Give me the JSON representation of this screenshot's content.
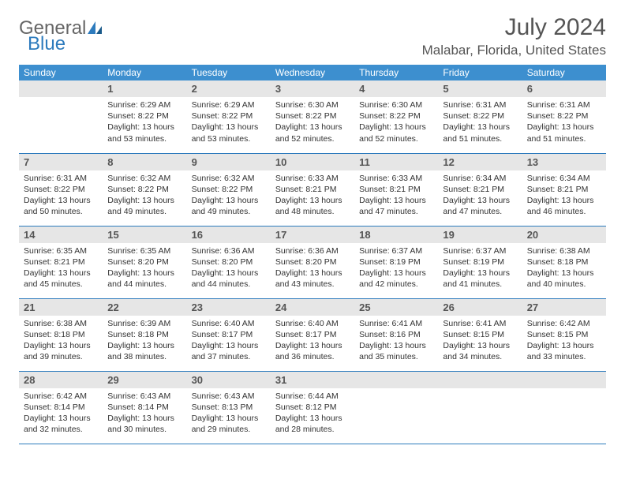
{
  "logo": {
    "word1": "General",
    "word2": "Blue"
  },
  "title": {
    "month": "July 2024",
    "location": "Malabar, Florida, United States"
  },
  "colors": {
    "header_bg": "#3d8fcf",
    "header_text": "#ffffff",
    "daynum_bg": "#e6e6e6",
    "row_border": "#2d7bbd",
    "logo_gray": "#666666",
    "logo_blue": "#2d7bbd"
  },
  "weekdays": [
    "Sunday",
    "Monday",
    "Tuesday",
    "Wednesday",
    "Thursday",
    "Friday",
    "Saturday"
  ],
  "start_offset": 1,
  "days": [
    {
      "n": 1,
      "sr": "6:29 AM",
      "ss": "8:22 PM",
      "dl": "13 hours and 53 minutes."
    },
    {
      "n": 2,
      "sr": "6:29 AM",
      "ss": "8:22 PM",
      "dl": "13 hours and 53 minutes."
    },
    {
      "n": 3,
      "sr": "6:30 AM",
      "ss": "8:22 PM",
      "dl": "13 hours and 52 minutes."
    },
    {
      "n": 4,
      "sr": "6:30 AM",
      "ss": "8:22 PM",
      "dl": "13 hours and 52 minutes."
    },
    {
      "n": 5,
      "sr": "6:31 AM",
      "ss": "8:22 PM",
      "dl": "13 hours and 51 minutes."
    },
    {
      "n": 6,
      "sr": "6:31 AM",
      "ss": "8:22 PM",
      "dl": "13 hours and 51 minutes."
    },
    {
      "n": 7,
      "sr": "6:31 AM",
      "ss": "8:22 PM",
      "dl": "13 hours and 50 minutes."
    },
    {
      "n": 8,
      "sr": "6:32 AM",
      "ss": "8:22 PM",
      "dl": "13 hours and 49 minutes."
    },
    {
      "n": 9,
      "sr": "6:32 AM",
      "ss": "8:22 PM",
      "dl": "13 hours and 49 minutes."
    },
    {
      "n": 10,
      "sr": "6:33 AM",
      "ss": "8:21 PM",
      "dl": "13 hours and 48 minutes."
    },
    {
      "n": 11,
      "sr": "6:33 AM",
      "ss": "8:21 PM",
      "dl": "13 hours and 47 minutes."
    },
    {
      "n": 12,
      "sr": "6:34 AM",
      "ss": "8:21 PM",
      "dl": "13 hours and 47 minutes."
    },
    {
      "n": 13,
      "sr": "6:34 AM",
      "ss": "8:21 PM",
      "dl": "13 hours and 46 minutes."
    },
    {
      "n": 14,
      "sr": "6:35 AM",
      "ss": "8:21 PM",
      "dl": "13 hours and 45 minutes."
    },
    {
      "n": 15,
      "sr": "6:35 AM",
      "ss": "8:20 PM",
      "dl": "13 hours and 44 minutes."
    },
    {
      "n": 16,
      "sr": "6:36 AM",
      "ss": "8:20 PM",
      "dl": "13 hours and 44 minutes."
    },
    {
      "n": 17,
      "sr": "6:36 AM",
      "ss": "8:20 PM",
      "dl": "13 hours and 43 minutes."
    },
    {
      "n": 18,
      "sr": "6:37 AM",
      "ss": "8:19 PM",
      "dl": "13 hours and 42 minutes."
    },
    {
      "n": 19,
      "sr": "6:37 AM",
      "ss": "8:19 PM",
      "dl": "13 hours and 41 minutes."
    },
    {
      "n": 20,
      "sr": "6:38 AM",
      "ss": "8:18 PM",
      "dl": "13 hours and 40 minutes."
    },
    {
      "n": 21,
      "sr": "6:38 AM",
      "ss": "8:18 PM",
      "dl": "13 hours and 39 minutes."
    },
    {
      "n": 22,
      "sr": "6:39 AM",
      "ss": "8:18 PM",
      "dl": "13 hours and 38 minutes."
    },
    {
      "n": 23,
      "sr": "6:40 AM",
      "ss": "8:17 PM",
      "dl": "13 hours and 37 minutes."
    },
    {
      "n": 24,
      "sr": "6:40 AM",
      "ss": "8:17 PM",
      "dl": "13 hours and 36 minutes."
    },
    {
      "n": 25,
      "sr": "6:41 AM",
      "ss": "8:16 PM",
      "dl": "13 hours and 35 minutes."
    },
    {
      "n": 26,
      "sr": "6:41 AM",
      "ss": "8:15 PM",
      "dl": "13 hours and 34 minutes."
    },
    {
      "n": 27,
      "sr": "6:42 AM",
      "ss": "8:15 PM",
      "dl": "13 hours and 33 minutes."
    },
    {
      "n": 28,
      "sr": "6:42 AM",
      "ss": "8:14 PM",
      "dl": "13 hours and 32 minutes."
    },
    {
      "n": 29,
      "sr": "6:43 AM",
      "ss": "8:14 PM",
      "dl": "13 hours and 30 minutes."
    },
    {
      "n": 30,
      "sr": "6:43 AM",
      "ss": "8:13 PM",
      "dl": "13 hours and 29 minutes."
    },
    {
      "n": 31,
      "sr": "6:44 AM",
      "ss": "8:12 PM",
      "dl": "13 hours and 28 minutes."
    }
  ],
  "labels": {
    "sunrise": "Sunrise:",
    "sunset": "Sunset:",
    "daylight": "Daylight:"
  }
}
